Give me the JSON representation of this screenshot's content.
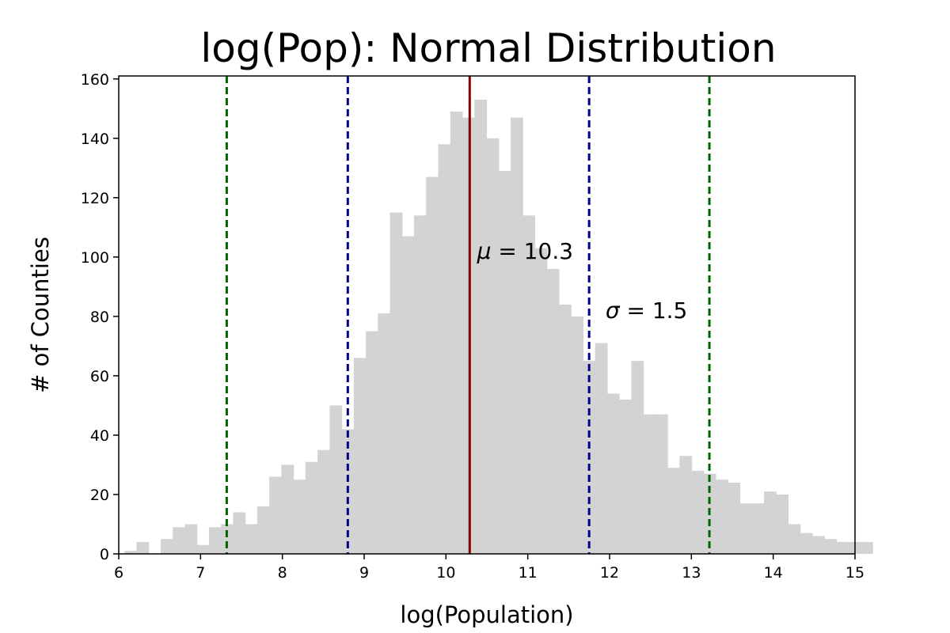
{
  "chart_data": {
    "type": "bar",
    "title": "log(Pop): Normal Distribution",
    "xlabel": "log(Population)",
    "ylabel": "# of Counties",
    "xlim": [
      6,
      15
    ],
    "ylim": [
      0,
      161
    ],
    "xticks": [
      6,
      7,
      8,
      9,
      10,
      11,
      12,
      13,
      14,
      15
    ],
    "yticks": [
      0,
      20,
      40,
      60,
      80,
      100,
      120,
      140,
      160
    ],
    "grid": false,
    "bar_color": "#d3d3d3",
    "bin_start": 6.07,
    "bin_width": 0.1475,
    "values": [
      1,
      4,
      0,
      5,
      9,
      10,
      3,
      9,
      10,
      14,
      10,
      16,
      26,
      30,
      25,
      31,
      35,
      50,
      42,
      66,
      75,
      81,
      115,
      107,
      114,
      127,
      138,
      149,
      147,
      153,
      140,
      129,
      147,
      114,
      103,
      96,
      84,
      80,
      65,
      71,
      54,
      52,
      65,
      47,
      47,
      29,
      33,
      28,
      27,
      25,
      24,
      17,
      17,
      21,
      20,
      10,
      7,
      6,
      5,
      4,
      4,
      4
    ],
    "mean": {
      "value": 10.29,
      "color": "#8b0000",
      "style": "solid",
      "label_symbol": "μ",
      "label_text": " = 10.3",
      "label_x": 10.38,
      "label_y": 100
    },
    "sigma_lines": {
      "one_sigma": {
        "values": [
          8.8,
          11.75
        ],
        "color": "#00008b",
        "style": "dashed"
      },
      "two_sigma": {
        "values": [
          7.32,
          13.22
        ],
        "color": "#006400",
        "style": "dashed"
      },
      "label_symbol": "σ",
      "label_text": " = 1.5",
      "label_x": 11.95,
      "label_y": 80
    }
  }
}
